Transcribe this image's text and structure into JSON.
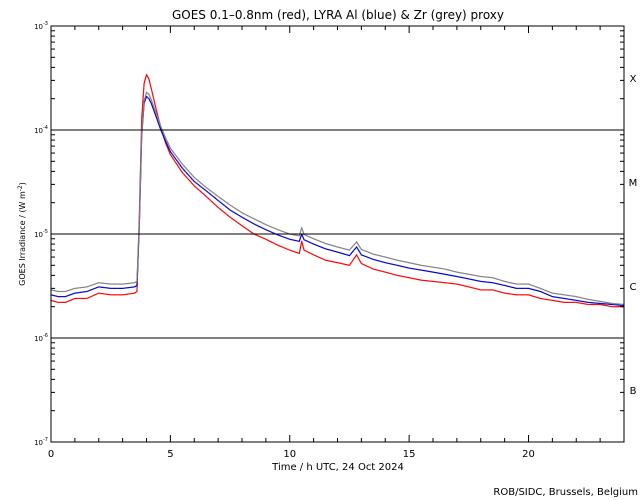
{
  "chart_data": {
    "type": "scatter",
    "title": "GOES 0.1–0.8nm (red), LYRA Al (blue) & Zr (grey) proxy",
    "xlabel": "Time / h UTC, 24 Oct 2024",
    "ylabel_main": "GOES Irradiance / (W m",
    "ylabel_sup": "-2",
    "ylabel_close": ")",
    "credit": "ROB/SIDC, Brussels, Belgium",
    "xlim": [
      0,
      24
    ],
    "ylim": [
      1e-07,
      0.001
    ],
    "yscale": "log",
    "x_ticks": [
      {
        "value": 0,
        "label": "0"
      },
      {
        "value": 5,
        "label": "5"
      },
      {
        "value": 10,
        "label": "10"
      },
      {
        "value": 15,
        "label": "15"
      },
      {
        "value": 20,
        "label": "20"
      }
    ],
    "y_ticks": [
      {
        "value": 0.001,
        "base": "10",
        "exp": "-3"
      },
      {
        "value": 0.0001,
        "base": "10",
        "exp": "-4"
      },
      {
        "value": 1e-05,
        "base": "10",
        "exp": "-5"
      },
      {
        "value": 1e-06,
        "base": "10",
        "exp": "-6"
      },
      {
        "value": 1e-07,
        "base": "10",
        "exp": "-7"
      }
    ],
    "class_lines": [
      0.0001,
      1e-05,
      1e-06
    ],
    "class_labels": [
      {
        "label": "X",
        "value": 0.000316
      },
      {
        "label": "M",
        "value": 3.16e-05
      },
      {
        "label": "C",
        "value": 3.16e-06
      },
      {
        "label": "B",
        "value": 3.16e-07
      }
    ],
    "series": [
      {
        "color": "#ff0000",
        "points": [
          [
            0,
            2.3e-06
          ],
          [
            0.3,
            2.2e-06
          ],
          [
            0.6,
            2.2e-06
          ],
          [
            1.0,
            2.4e-06
          ],
          [
            1.5,
            2.4e-06
          ],
          [
            2.0,
            2.7e-06
          ],
          [
            2.5,
            2.6e-06
          ],
          [
            3.0,
            2.6e-06
          ],
          [
            3.5,
            2.7e-06
          ],
          [
            3.6,
            2.8e-06
          ],
          [
            3.7,
            1.5e-05
          ],
          [
            3.8,
            0.00013
          ],
          [
            3.9,
            0.00028
          ],
          [
            4.0,
            0.00034
          ],
          [
            4.1,
            0.00031
          ],
          [
            4.2,
            0.00025
          ],
          [
            4.4,
            0.00016
          ],
          [
            4.6,
            0.000105
          ],
          [
            4.8,
            7.5e-05
          ],
          [
            5.0,
            5.8e-05
          ],
          [
            5.5,
            3.9e-05
          ],
          [
            6.0,
            2.9e-05
          ],
          [
            6.5,
            2.3e-05
          ],
          [
            7.0,
            1.8e-05
          ],
          [
            7.5,
            1.45e-05
          ],
          [
            8.0,
            1.2e-05
          ],
          [
            8.5,
            1e-05
          ],
          [
            9.0,
            8.9e-06
          ],
          [
            9.5,
            7.8e-06
          ],
          [
            10.0,
            7e-06
          ],
          [
            10.4,
            6.5e-06
          ],
          [
            10.5,
            8.5e-06
          ],
          [
            10.6,
            7e-06
          ],
          [
            11.0,
            6.3e-06
          ],
          [
            11.5,
            5.6e-06
          ],
          [
            12.0,
            5.3e-06
          ],
          [
            12.5,
            5e-06
          ],
          [
            12.8,
            6.3e-06
          ],
          [
            13.0,
            5.2e-06
          ],
          [
            13.5,
            4.6e-06
          ],
          [
            14.0,
            4.3e-06
          ],
          [
            14.5,
            4e-06
          ],
          [
            15.0,
            3.8e-06
          ],
          [
            15.5,
            3.6e-06
          ],
          [
            16.0,
            3.5e-06
          ],
          [
            16.5,
            3.4e-06
          ],
          [
            17.0,
            3.3e-06
          ],
          [
            17.5,
            3.1e-06
          ],
          [
            18.0,
            2.9e-06
          ],
          [
            18.5,
            2.9e-06
          ],
          [
            19.0,
            2.7e-06
          ],
          [
            19.5,
            2.6e-06
          ],
          [
            20.0,
            2.6e-06
          ],
          [
            20.5,
            2.4e-06
          ],
          [
            21.0,
            2.3e-06
          ],
          [
            21.5,
            2.2e-06
          ],
          [
            22.0,
            2.2e-06
          ],
          [
            22.5,
            2.1e-06
          ],
          [
            23.0,
            2.1e-06
          ],
          [
            23.5,
            2e-06
          ],
          [
            24.0,
            2e-06
          ]
        ]
      },
      {
        "color": "#0000cc",
        "points": [
          [
            0,
            2.6e-06
          ],
          [
            0.3,
            2.5e-06
          ],
          [
            0.6,
            2.5e-06
          ],
          [
            1.0,
            2.7e-06
          ],
          [
            1.5,
            2.8e-06
          ],
          [
            2.0,
            3.1e-06
          ],
          [
            2.5,
            3e-06
          ],
          [
            3.0,
            3e-06
          ],
          [
            3.5,
            3.1e-06
          ],
          [
            3.6,
            3.2e-06
          ],
          [
            3.7,
            1.2e-05
          ],
          [
            3.8,
            9e-05
          ],
          [
            3.9,
            0.00018
          ],
          [
            4.0,
            0.00021
          ],
          [
            4.1,
            0.0002
          ],
          [
            4.2,
            0.00018
          ],
          [
            4.4,
            0.000135
          ],
          [
            4.6,
            0.0001
          ],
          [
            4.8,
            7.8e-05
          ],
          [
            5.0,
            6.2e-05
          ],
          [
            5.5,
            4.3e-05
          ],
          [
            6.0,
            3.2e-05
          ],
          [
            6.5,
            2.6e-05
          ],
          [
            7.0,
            2.1e-05
          ],
          [
            7.5,
            1.7e-05
          ],
          [
            8.0,
            1.45e-05
          ],
          [
            8.5,
            1.25e-05
          ],
          [
            9.0,
            1.1e-05
          ],
          [
            9.5,
            9.8e-06
          ],
          [
            10.0,
            8.9e-06
          ],
          [
            10.4,
            8.5e-06
          ],
          [
            10.5,
            1e-05
          ],
          [
            10.6,
            8.8e-06
          ],
          [
            11.0,
            8e-06
          ],
          [
            11.5,
            7.2e-06
          ],
          [
            12.0,
            6.7e-06
          ],
          [
            12.5,
            6.2e-06
          ],
          [
            12.8,
            7.5e-06
          ],
          [
            13.0,
            6.3e-06
          ],
          [
            13.5,
            5.7e-06
          ],
          [
            14.0,
            5.3e-06
          ],
          [
            14.5,
            5e-06
          ],
          [
            15.0,
            4.7e-06
          ],
          [
            15.5,
            4.5e-06
          ],
          [
            16.0,
            4.3e-06
          ],
          [
            16.5,
            4.1e-06
          ],
          [
            17.0,
            3.9e-06
          ],
          [
            17.5,
            3.7e-06
          ],
          [
            18.0,
            3.5e-06
          ],
          [
            18.5,
            3.4e-06
          ],
          [
            19.0,
            3.2e-06
          ],
          [
            19.5,
            3e-06
          ],
          [
            20.0,
            3e-06
          ],
          [
            20.5,
            2.8e-06
          ],
          [
            21.0,
            2.5e-06
          ],
          [
            21.5,
            2.4e-06
          ],
          [
            22.0,
            2.3e-06
          ],
          [
            22.5,
            2.2e-06
          ],
          [
            23.0,
            2.15e-06
          ],
          [
            23.5,
            2.1e-06
          ],
          [
            24.0,
            2.05e-06
          ]
        ]
      },
      {
        "color": "#808080",
        "points": [
          [
            0,
            2.9e-06
          ],
          [
            0.3,
            2.8e-06
          ],
          [
            0.6,
            2.8e-06
          ],
          [
            1.0,
            3e-06
          ],
          [
            1.5,
            3.1e-06
          ],
          [
            2.0,
            3.4e-06
          ],
          [
            2.5,
            3.3e-06
          ],
          [
            3.0,
            3.3e-06
          ],
          [
            3.5,
            3.4e-06
          ],
          [
            3.6,
            3.5e-06
          ],
          [
            3.7,
            1.3e-05
          ],
          [
            3.8,
            9.5e-05
          ],
          [
            3.9,
            0.00019
          ],
          [
            4.0,
            0.00023
          ],
          [
            4.1,
            0.00022
          ],
          [
            4.2,
            0.000195
          ],
          [
            4.4,
            0.000145
          ],
          [
            4.6,
            0.000108
          ],
          [
            4.8,
            8.4e-05
          ],
          [
            5.0,
            6.7e-05
          ],
          [
            5.5,
            4.7e-05
          ],
          [
            6.0,
            3.5e-05
          ],
          [
            6.5,
            2.8e-05
          ],
          [
            7.0,
            2.3e-05
          ],
          [
            7.5,
            1.9e-05
          ],
          [
            8.0,
            1.6e-05
          ],
          [
            8.5,
            1.4e-05
          ],
          [
            9.0,
            1.23e-05
          ],
          [
            9.5,
            1.1e-05
          ],
          [
            10.0,
            1e-05
          ],
          [
            10.4,
            9.6e-06
          ],
          [
            10.5,
            1.15e-05
          ],
          [
            10.6,
            9.9e-06
          ],
          [
            11.0,
            9e-06
          ],
          [
            11.5,
            8.1e-06
          ],
          [
            12.0,
            7.5e-06
          ],
          [
            12.5,
            7e-06
          ],
          [
            12.8,
            8.4e-06
          ],
          [
            13.0,
            7.1e-06
          ],
          [
            13.5,
            6.4e-06
          ],
          [
            14.0,
            6e-06
          ],
          [
            14.5,
            5.6e-06
          ],
          [
            15.0,
            5.3e-06
          ],
          [
            15.5,
            5e-06
          ],
          [
            16.0,
            4.8e-06
          ],
          [
            16.5,
            4.6e-06
          ],
          [
            17.0,
            4.3e-06
          ],
          [
            17.5,
            4.1e-06
          ],
          [
            18.0,
            3.9e-06
          ],
          [
            18.5,
            3.8e-06
          ],
          [
            19.0,
            3.5e-06
          ],
          [
            19.5,
            3.3e-06
          ],
          [
            20.0,
            3.3e-06
          ],
          [
            20.5,
            3e-06
          ],
          [
            21.0,
            2.7e-06
          ],
          [
            21.5,
            2.6e-06
          ],
          [
            22.0,
            2.5e-06
          ],
          [
            22.5,
            2.35e-06
          ],
          [
            23.0,
            2.25e-06
          ],
          [
            23.5,
            2.15e-06
          ],
          [
            24.0,
            2.1e-06
          ]
        ]
      }
    ]
  }
}
